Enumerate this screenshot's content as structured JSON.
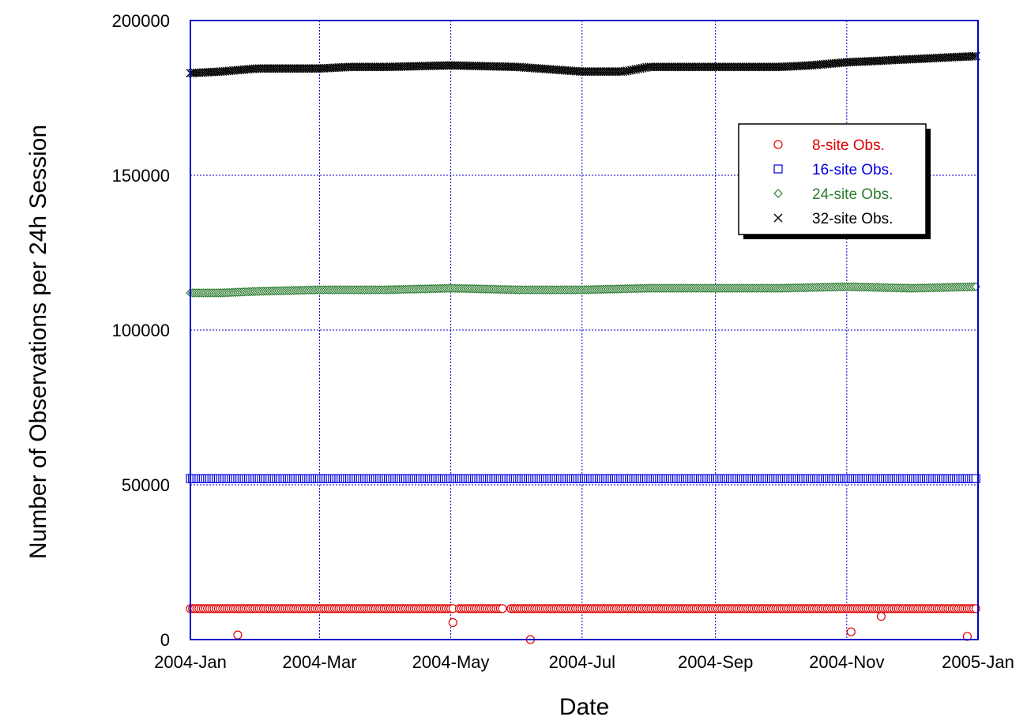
{
  "chart_data": {
    "type": "scatter",
    "title": "",
    "xlabel": "Date",
    "ylabel": "Number of Observations per 24h Session",
    "x_axis": {
      "ticks": [
        "2004-Jan",
        "2004-Mar",
        "2004-May",
        "2004-Jul",
        "2004-Sep",
        "2004-Nov",
        "2005-Jan"
      ],
      "tick_dates": [
        "2004-01-01",
        "2004-03-01",
        "2004-05-01",
        "2004-07-01",
        "2004-09-01",
        "2004-11-01",
        "2005-01-01"
      ],
      "range": [
        "2004-01-01",
        "2005-01-01"
      ]
    },
    "y_axis": {
      "ticks": [
        "0",
        "50000",
        "100000",
        "150000",
        "200000"
      ],
      "tick_values": [
        0,
        50000,
        100000,
        150000,
        200000
      ],
      "range": [
        0,
        200000
      ]
    },
    "grid": true,
    "legend_position": "top-right",
    "series": [
      {
        "name": "8-site Obs.",
        "color": "#e00000",
        "marker": "circle",
        "sampling": "daily",
        "x_range": [
          "2004-01-01",
          "2004-12-31"
        ],
        "points": [
          [
            "2004-01-01",
            10000
          ],
          [
            "2004-02-01",
            10000
          ],
          [
            "2004-03-01",
            10000
          ],
          [
            "2004-04-01",
            10000
          ],
          [
            "2004-05-01",
            10000
          ],
          [
            "2004-05-25",
            10000
          ],
          [
            "2004-06-01",
            10000
          ],
          [
            "2004-07-01",
            10000
          ],
          [
            "2004-08-01",
            10000
          ],
          [
            "2004-09-01",
            10000
          ],
          [
            "2004-10-01",
            10000
          ],
          [
            "2004-11-01",
            10000
          ],
          [
            "2004-12-01",
            10000
          ],
          [
            "2004-12-31",
            10000
          ]
        ],
        "gaps": [
          [
            "2004-05-03",
            "2004-05-04"
          ],
          [
            "2004-05-26",
            "2004-05-28"
          ]
        ],
        "outliers": [
          [
            "2004-01-23",
            1500
          ],
          [
            "2004-05-02",
            5500
          ],
          [
            "2004-06-07",
            0
          ],
          [
            "2004-11-03",
            2500
          ],
          [
            "2004-11-17",
            7500
          ],
          [
            "2004-12-27",
            1000
          ]
        ]
      },
      {
        "name": "16-site Obs.",
        "color": "#0000e0",
        "marker": "square",
        "sampling": "daily",
        "x_range": [
          "2004-01-01",
          "2004-12-31"
        ],
        "points": [
          [
            "2004-01-01",
            52000
          ],
          [
            "2004-12-31",
            52000
          ]
        ]
      },
      {
        "name": "24-site Obs.",
        "color": "#2e7d32",
        "marker": "diamond",
        "sampling": "daily",
        "x_range": [
          "2004-01-01",
          "2004-12-31"
        ],
        "points": [
          [
            "2004-01-01",
            112000
          ],
          [
            "2004-01-15",
            112000
          ],
          [
            "2004-02-01",
            112500
          ],
          [
            "2004-03-01",
            113000
          ],
          [
            "2004-04-01",
            113000
          ],
          [
            "2004-05-01",
            113500
          ],
          [
            "2004-06-01",
            113000
          ],
          [
            "2004-07-01",
            113000
          ],
          [
            "2004-08-01",
            113500
          ],
          [
            "2004-09-01",
            113500
          ],
          [
            "2004-10-01",
            113500
          ],
          [
            "2004-11-01",
            114000
          ],
          [
            "2004-12-01",
            113500
          ],
          [
            "2004-12-31",
            114000
          ]
        ]
      },
      {
        "name": "32-site Obs.",
        "color": "#000000",
        "marker": "x",
        "sampling": "daily",
        "x_range": [
          "2004-01-01",
          "2004-12-31"
        ],
        "points": [
          [
            "2004-01-01",
            183000
          ],
          [
            "2004-01-15",
            183500
          ],
          [
            "2004-02-01",
            184500
          ],
          [
            "2004-03-01",
            184500
          ],
          [
            "2004-03-15",
            185000
          ],
          [
            "2004-04-01",
            185000
          ],
          [
            "2004-05-01",
            185500
          ],
          [
            "2004-06-01",
            185000
          ],
          [
            "2004-07-01",
            183500
          ],
          [
            "2004-07-20",
            183500
          ],
          [
            "2004-08-01",
            185000
          ],
          [
            "2004-09-01",
            185000
          ],
          [
            "2004-10-01",
            185000
          ],
          [
            "2004-10-15",
            185500
          ],
          [
            "2004-11-01",
            186500
          ],
          [
            "2004-12-01",
            187500
          ],
          [
            "2004-12-31",
            188500
          ]
        ]
      }
    ]
  }
}
